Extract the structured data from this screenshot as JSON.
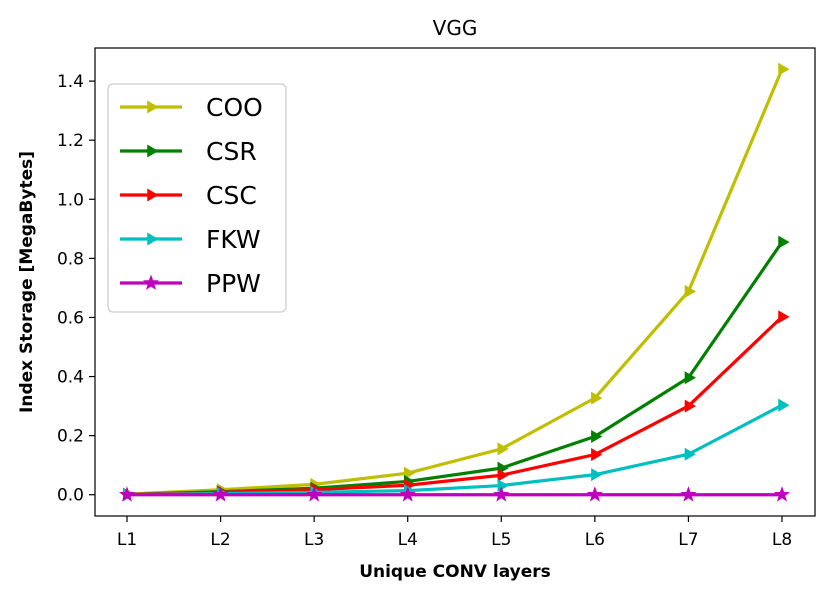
{
  "chart_data": {
    "type": "line",
    "title": "VGG",
    "xlabel": "Unique CONV layers",
    "ylabel": "Index Storage [MegaBytes]",
    "categories": [
      "L1",
      "L2",
      "L3",
      "L4",
      "L5",
      "L6",
      "L7",
      "L8"
    ],
    "ylim": [
      -0.072,
      1.512
    ],
    "yticks": [
      0.0,
      0.2,
      0.4,
      0.6,
      0.8,
      1.0,
      1.2,
      1.4
    ],
    "ytick_labels": [
      "0.0",
      "0.2",
      "0.4",
      "0.6",
      "0.8",
      "1.0",
      "1.2",
      "1.4"
    ],
    "grid": false,
    "legend_position": "upper-left",
    "series": [
      {
        "name": "COO",
        "color": "#bfbf00",
        "marker": "triangle-right",
        "values": [
          0.002,
          0.017,
          0.035,
          0.073,
          0.155,
          0.327,
          0.688,
          1.44
        ]
      },
      {
        "name": "CSR",
        "color": "#008000",
        "marker": "triangle-right",
        "values": [
          0.001,
          0.01,
          0.022,
          0.045,
          0.09,
          0.197,
          0.396,
          0.855
        ]
      },
      {
        "name": "CSC",
        "color": "#ff0000",
        "marker": "triangle-right",
        "values": [
          0.001,
          0.008,
          0.017,
          0.032,
          0.066,
          0.136,
          0.3,
          0.602
        ]
      },
      {
        "name": "FKW",
        "color": "#00bfbf",
        "marker": "triangle-right",
        "values": [
          0.0005,
          0.004,
          0.008,
          0.014,
          0.031,
          0.068,
          0.137,
          0.303
        ]
      },
      {
        "name": "PPW",
        "color": "#bf00bf",
        "marker": "star",
        "values": [
          0.0,
          0.0,
          0.0,
          0.0,
          0.0,
          0.0,
          0.0,
          0.0
        ]
      }
    ]
  }
}
